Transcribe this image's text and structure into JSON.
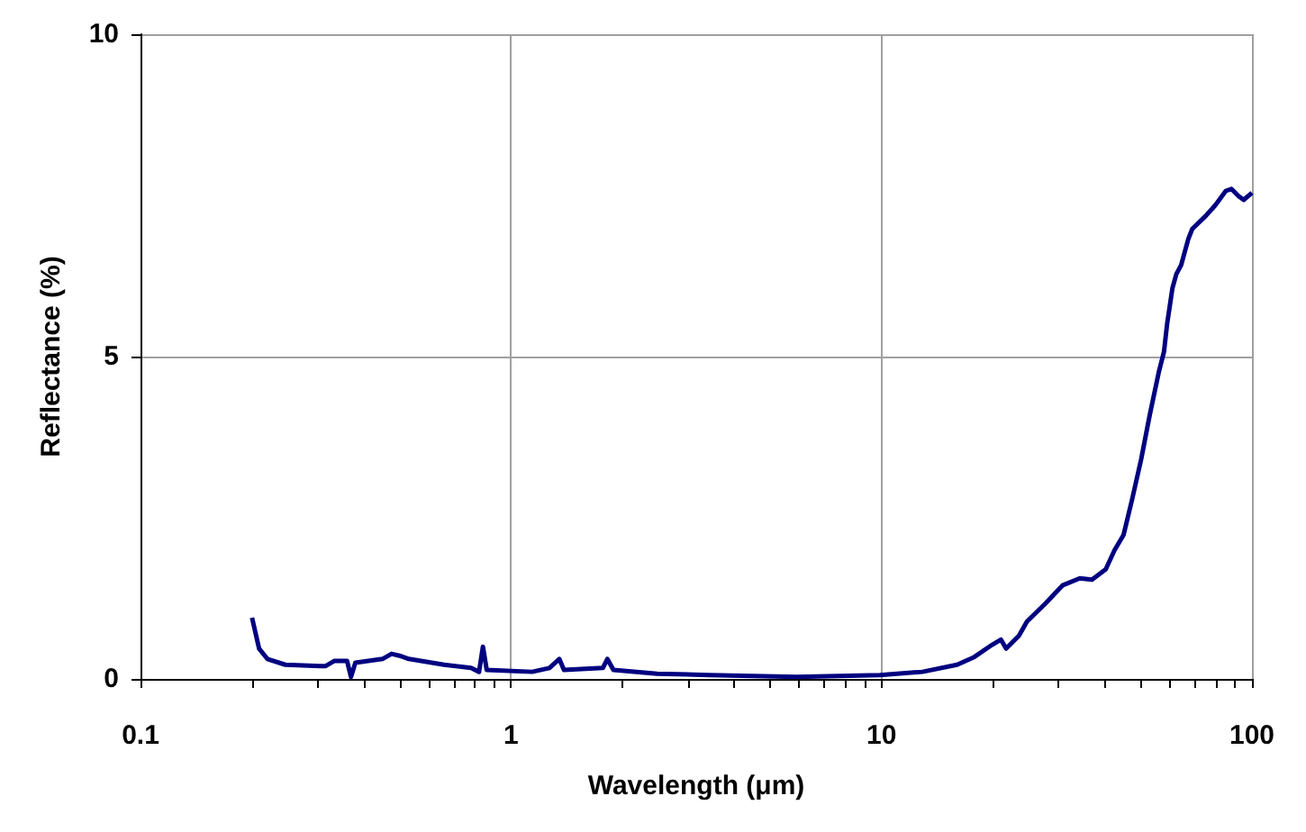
{
  "chart_data": {
    "type": "line",
    "xlabel": "Wavelength (μm)",
    "ylabel": "Reflectance (%)",
    "log": "x",
    "grid": true,
    "marker": "none",
    "line_style": "solid",
    "xlim": [
      0.1,
      100
    ],
    "xticks": [
      0.1,
      1,
      10,
      100
    ],
    "ylim": [
      0,
      10
    ],
    "yticks": [
      0,
      5,
      10
    ],
    "series": [
      {
        "color": "#000080",
        "x": [
          0.2,
          0.209,
          0.22,
          0.246,
          0.306,
          0.316,
          0.334,
          0.361,
          0.37,
          0.38,
          0.45,
          0.476,
          0.5,
          0.53,
          0.66,
          0.78,
          0.82,
          0.84,
          0.86,
          1.14,
          1.27,
          1.35,
          1.39,
          1.77,
          1.82,
          1.89,
          2.48,
          3.43,
          5.9,
          9.9,
          12.9,
          16,
          17.8,
          19.9,
          21,
          21.7,
          23.5,
          24.7,
          27.7,
          30.8,
          34.3,
          37,
          40.3,
          42.6,
          45,
          47.5,
          50.2,
          53,
          56,
          57.9,
          59,
          61,
          62.5,
          64.4,
          67.3,
          69,
          75,
          79.7,
          85,
          88,
          92,
          95,
          100
        ],
        "values": [
          0.95,
          0.47,
          0.31,
          0.22,
          0.2,
          0.2,
          0.28,
          0.28,
          0.03,
          0.25,
          0.31,
          0.39,
          0.36,
          0.31,
          0.22,
          0.17,
          0.11,
          0.5,
          0.14,
          0.11,
          0.17,
          0.31,
          0.14,
          0.17,
          0.31,
          0.14,
          0.08,
          0.06,
          0.03,
          0.06,
          0.11,
          0.22,
          0.34,
          0.53,
          0.61,
          0.47,
          0.67,
          0.89,
          1.17,
          1.45,
          1.56,
          1.54,
          1.7,
          2.0,
          2.23,
          2.79,
          3.4,
          4.1,
          4.75,
          5.08,
          5.5,
          6.06,
          6.28,
          6.42,
          6.82,
          6.98,
          7.18,
          7.35,
          7.57,
          7.6,
          7.49,
          7.43,
          7.54
        ]
      }
    ]
  }
}
